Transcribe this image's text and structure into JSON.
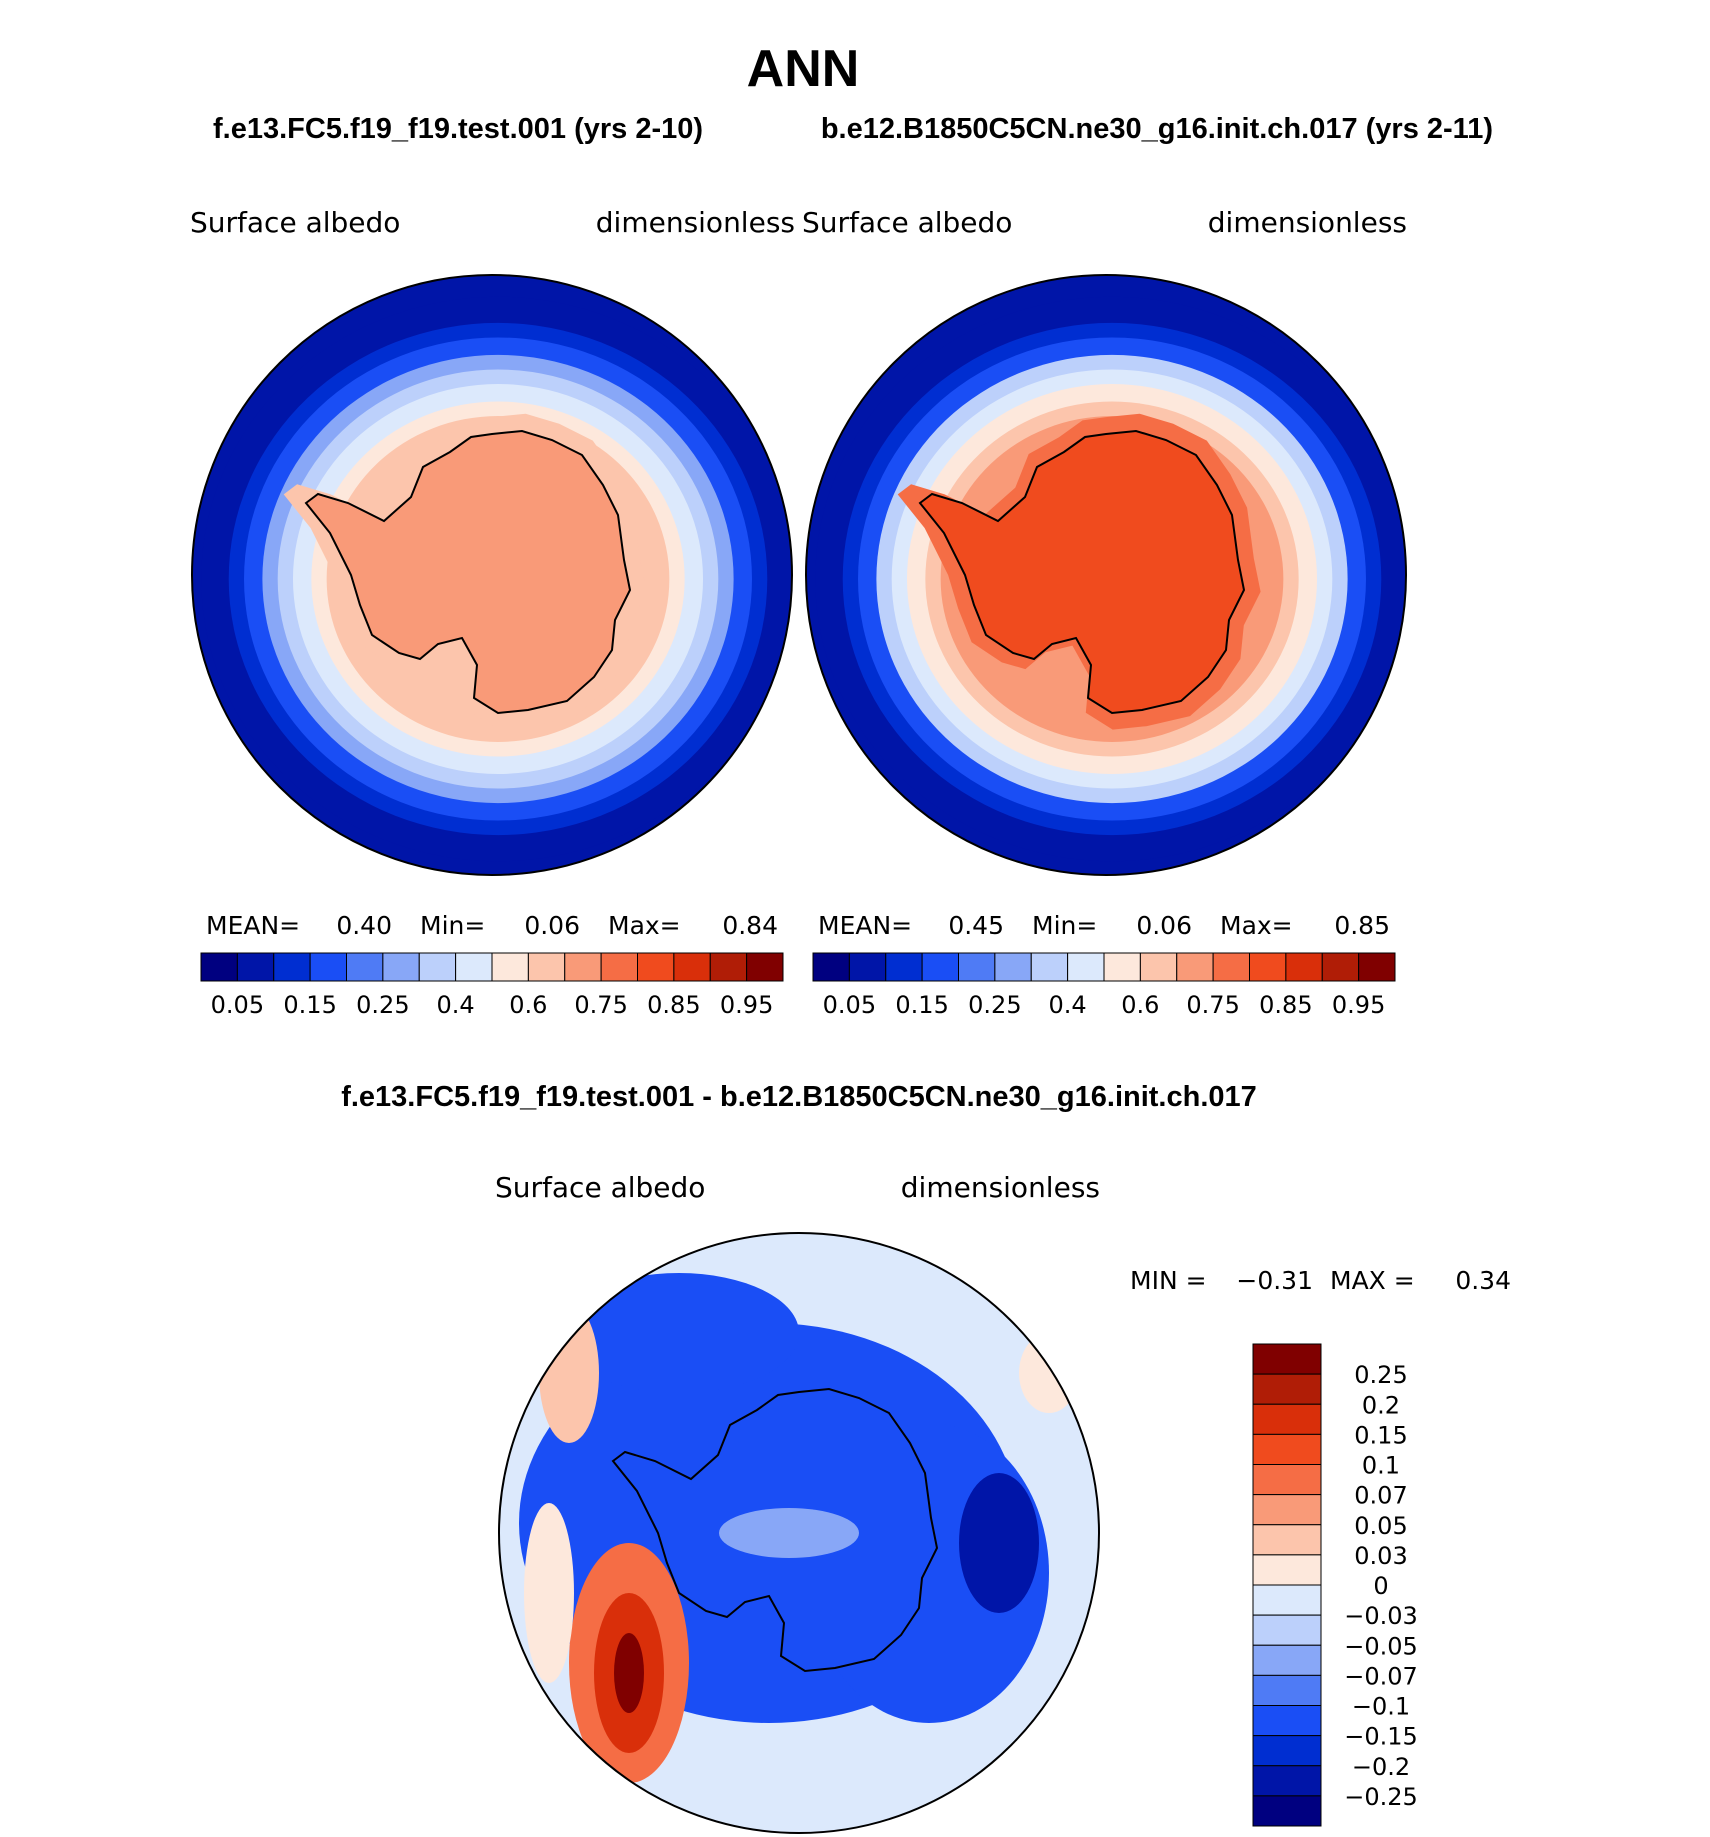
{
  "page": {
    "title": "ANN",
    "case1_title": "f.e13.FC5.f19_f19.test.001 (yrs 2-10)",
    "case2_title": "b.e12.B1850C5CN.ne30_g16.init.ch.017 (yrs 2-11)",
    "diff_title": "f.e13.FC5.f19_f19.test.001 - b.e12.B1850C5CN.ne30_g16.init.ch.017"
  },
  "chart_data": [
    {
      "type": "heatmap",
      "projection": "south-polar-stereographic",
      "variable": "Surface  albedo",
      "units": "dimensionless",
      "stats": {
        "mean_label": "MEAN=",
        "mean": "0.40",
        "min_label": "Min=",
        "min": "0.06",
        "max_label": "Max=",
        "max": "0.84"
      },
      "levels": [
        "0.05",
        "0.15",
        "0.25",
        "0.4",
        "0.6",
        "0.75",
        "0.85",
        "0.95"
      ],
      "colors": [
        "#000080",
        "#0015a8",
        "#002ed1",
        "#1a4ef5",
        "#4f7bf5",
        "#88a7f7",
        "#bcd0fb",
        "#dce9fc",
        "#fde8dc",
        "#fcc5ac",
        "#f99a78",
        "#f56d45",
        "#f04b1e",
        "#d92f0a",
        "#b01d06",
        "#800000"
      ],
      "ice_class": 10,
      "ring_classes": [
        1,
        2,
        3,
        5,
        6,
        7,
        8,
        9
      ]
    },
    {
      "type": "heatmap",
      "projection": "south-polar-stereographic",
      "variable": "Surface  albedo",
      "units": "dimensionless",
      "stats": {
        "mean_label": "MEAN=",
        "mean": "0.45",
        "min_label": "Min=",
        "min": "0.06",
        "max_label": "Max=",
        "max": "0.85"
      },
      "levels": [
        "0.05",
        "0.15",
        "0.25",
        "0.4",
        "0.6",
        "0.75",
        "0.85",
        "0.95"
      ],
      "colors": [
        "#000080",
        "#0015a8",
        "#002ed1",
        "#1a4ef5",
        "#4f7bf5",
        "#88a7f7",
        "#bcd0fb",
        "#dce9fc",
        "#fde8dc",
        "#fcc5ac",
        "#f99a78",
        "#f56d45",
        "#f04b1e",
        "#d92f0a",
        "#b01d06",
        "#800000"
      ],
      "ice_class": 12,
      "ring_classes": [
        1,
        2,
        3,
        6,
        7,
        8,
        9,
        10
      ]
    },
    {
      "type": "heatmap",
      "projection": "south-polar-stereographic",
      "variable": "Surface  albedo",
      "units": "dimensionless",
      "stats": {
        "min_label": "MIN =",
        "min": "−0.31",
        "max_label": "MAX =",
        "max": "0.34"
      },
      "levels": [
        "0.25",
        "0.2",
        "0.15",
        "0.1",
        "0.07",
        "0.05",
        "0.03",
        "0",
        "−0.03",
        "−0.05",
        "−0.07",
        "−0.1",
        "−0.15",
        "−0.2",
        "−0.25"
      ],
      "colors": [
        "#800000",
        "#b01d06",
        "#d92f0a",
        "#f04b1e",
        "#f56d45",
        "#f99a78",
        "#fcc5ac",
        "#fde8dc",
        "#dce9fc",
        "#bcd0fb",
        "#88a7f7",
        "#4f7bf5",
        "#1a4ef5",
        "#002ed1",
        "#0015a8",
        "#000080"
      ]
    }
  ]
}
